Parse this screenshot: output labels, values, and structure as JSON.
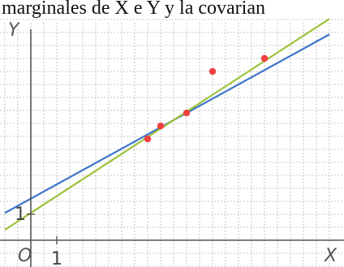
{
  "caption": "marginales de X e Y y la covarian",
  "chart_data": {
    "type": "scatter",
    "title": "",
    "xlabel": "X",
    "ylabel": "Y",
    "origin_label": "O",
    "x_tick_label": "1",
    "y_tick_label": "1",
    "xlim": [
      -1,
      11.5
    ],
    "ylim": [
      -1,
      8.9
    ],
    "grid": true,
    "points": [
      {
        "x": 4.5,
        "y": 3.9
      },
      {
        "x": 5.0,
        "y": 4.4
      },
      {
        "x": 6.0,
        "y": 4.9
      },
      {
        "x": 7.0,
        "y": 6.5
      },
      {
        "x": 9.0,
        "y": 7.0
      }
    ],
    "lines": [
      {
        "intercept": 1.6,
        "slope": 0.55
      },
      {
        "intercept": 1.05,
        "slope": 0.65
      }
    ],
    "colors": {
      "points": "#f04040",
      "line_blue": "#3d74c8",
      "line_green": "#9cc23a",
      "grid": "#b8b8b8",
      "axes": "#555555"
    }
  }
}
